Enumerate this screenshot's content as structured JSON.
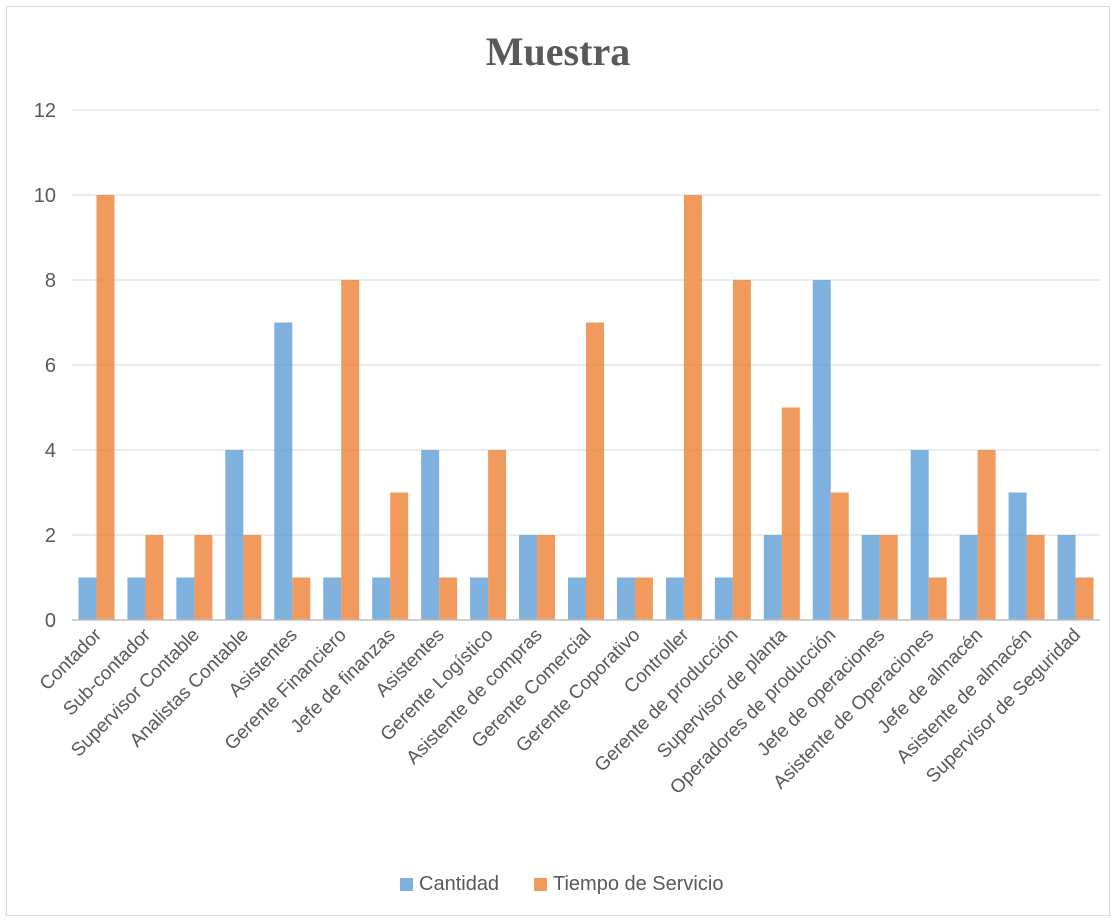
{
  "chart_data": {
    "type": "bar",
    "title": "Muestra",
    "xlabel": "",
    "ylabel": "",
    "ylim": [
      0,
      12
    ],
    "yticks": [
      0,
      2,
      4,
      6,
      8,
      10,
      12
    ],
    "grid": true,
    "legend_position": "bottom",
    "categories": [
      "Contador",
      "Sub-contador",
      "Supervisor Contable",
      "Analistas Contable",
      "Asistentes",
      "Gerente Financiero",
      "Jefe de finanzas",
      "Asistentes",
      "Gerente Logístico",
      "Asistente de compras",
      "Gerente Comercial",
      "Gerente Coporativo",
      "Controller",
      "Gerente de producción",
      "Supervisor de planta",
      "Operadores de producción",
      "Jefe de operaciones",
      "Asistente de Operaciones",
      "Jefe de almacén",
      "Asistente de almacén",
      "Supervisor de Seguridad"
    ],
    "series": [
      {
        "name": "Cantidad",
        "color": "#5b9bd5",
        "values": [
          1,
          1,
          1,
          4,
          7,
          1,
          1,
          4,
          1,
          2,
          1,
          1,
          1,
          1,
          2,
          8,
          2,
          4,
          2,
          3,
          2
        ]
      },
      {
        "name": "Tiempo de Servicio",
        "color": "#ed7d31",
        "values": [
          10,
          2,
          2,
          2,
          1,
          8,
          3,
          1,
          4,
          2,
          7,
          1,
          10,
          8,
          5,
          3,
          2,
          1,
          4,
          2,
          1
        ]
      }
    ]
  }
}
